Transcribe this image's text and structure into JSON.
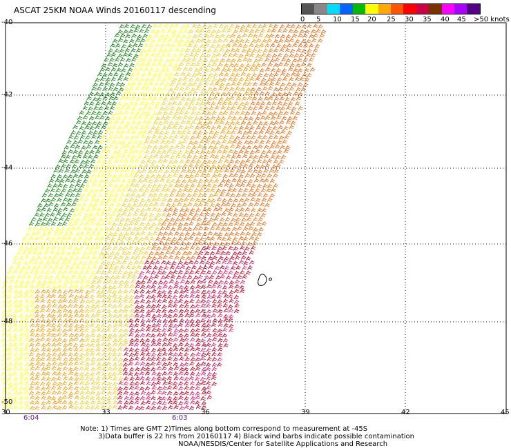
{
  "title": "ASCAT 25KM NOAA Winds 20160117 descending",
  "legend": {
    "labels": [
      "0",
      "5",
      "10",
      "15",
      "20",
      "25",
      "30",
      "35",
      "40",
      "45",
      ">50 knots"
    ],
    "colors": [
      "#555555",
      "#888888",
      "#00ddff",
      "#0066ff",
      "#00bb00",
      "#ffff00",
      "#ffaa00",
      "#ff5500",
      "#ff0000",
      "#cc0044",
      "#773300",
      "#ff00ff",
      "#aa00ff",
      "#550088"
    ]
  },
  "axes": {
    "lat_labels": [
      "-40",
      "-42",
      "-44",
      "-46",
      "-48",
      "-50"
    ],
    "lon_labels": [
      "30",
      "33",
      "36",
      "39",
      "42",
      "45"
    ]
  },
  "times": [
    "6:04",
    "6:03"
  ],
  "notes": [
    "Note: 1) Times are GMT 2)Times along bottom correspond to measurement at -45S",
    "3)Data buffer is 22 hrs from 20160117 4) Black wind barbs indicate possible contamination",
    "NOAA/NESDIS/Center for Satellite Applications and Research"
  ]
}
